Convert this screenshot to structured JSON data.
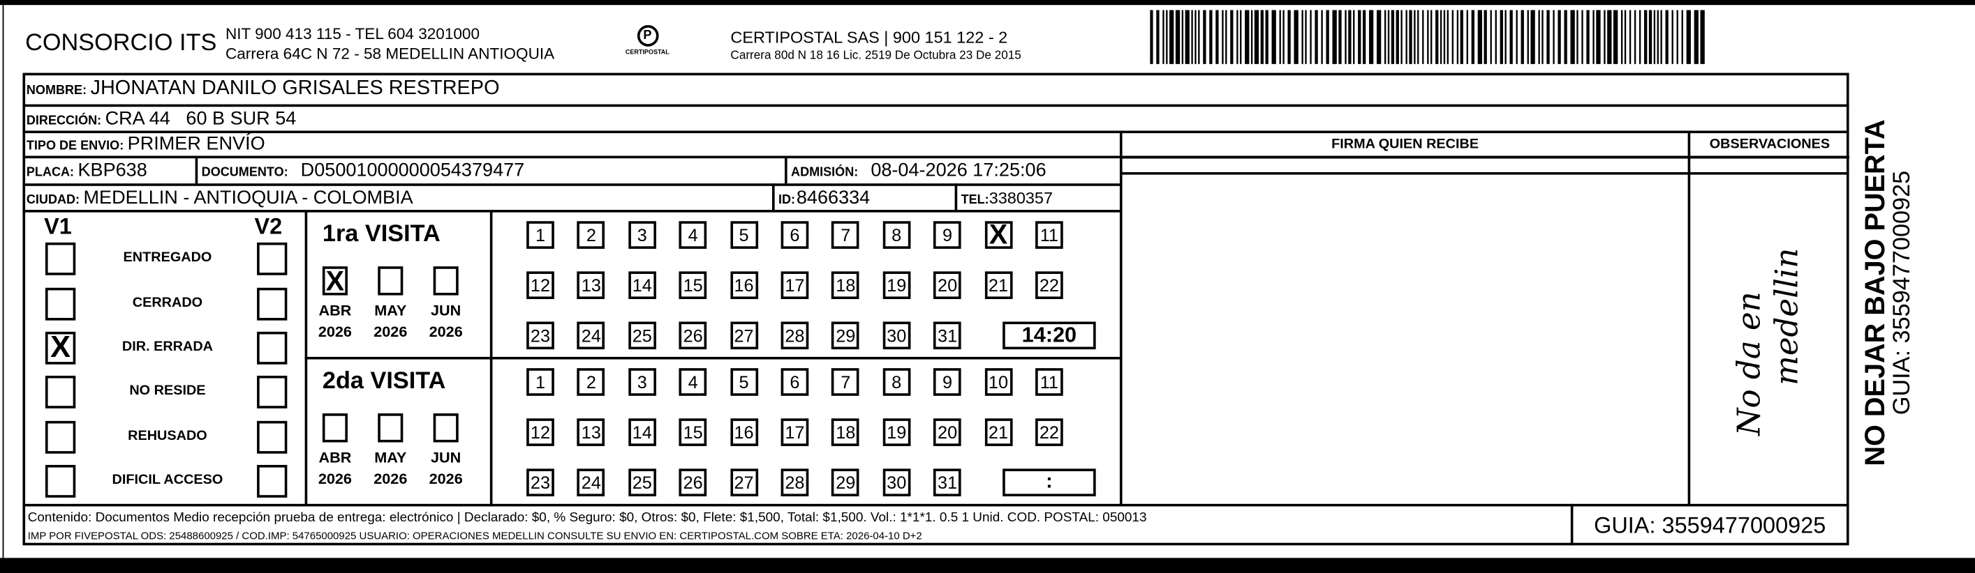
{
  "header": {
    "company": "CONSORCIO ITS",
    "company_line1": "NIT 900 413 115 - TEL 604 3201000",
    "company_line2": "Carrera 64C N 72 - 58 MEDELLIN ANTIOQUIA",
    "logo_text": "CERTIPOSTAL",
    "operator_line1": "CERTIPOSTAL SAS | 900 151 122 - 2",
    "operator_line2": "Carrera 80d N 18 16  Lic. 2519 De Octubra 23 De 2015",
    "barcode_value": "3559477000925"
  },
  "recipient": {
    "nombre_label": "NOMBRE:",
    "nombre": "JHONATAN DANILO GRISALES RESTREPO",
    "direccion_label": "DIRECCIÓN:",
    "direccion": "CRA 44   60 B SUR 54",
    "tipo_label": "TIPO DE ENVIO:",
    "tipo": "PRIMER ENVÍO",
    "placa_label": "PLACA:",
    "placa": "KBP638",
    "documento_label": "DOCUMENTO:",
    "documento": "D05001000000054379477",
    "admision_label": "ADMISIÓN:",
    "admision": "08-04-2026 17:25:06",
    "ciudad_label": "CIUDAD:",
    "ciudad": "MEDELLIN - ANTIOQUIA - COLOMBIA",
    "id_label": "ID:",
    "id": "8466334",
    "tel_label": "TEL:",
    "tel": "3380357"
  },
  "firma_header": "FIRMA QUIEN RECIBE",
  "observaciones_header": "OBSERVACIONES",
  "observaciones_handwritten": [
    "No da en",
    "medellin"
  ],
  "status": {
    "v1_label": "V1",
    "v2_label": "V2",
    "items": [
      {
        "label": "ENTREGADO",
        "v1": false,
        "v2": false
      },
      {
        "label": "CERRADO",
        "v1": false,
        "v2": false
      },
      {
        "label": "DIR. ERRADA",
        "v1": true,
        "v2": false
      },
      {
        "label": "NO RESIDE",
        "v1": false,
        "v2": false
      },
      {
        "label": "REHUSADO",
        "v1": false,
        "v2": false
      },
      {
        "label": "DIFICIL ACCESO",
        "v1": false,
        "v2": false
      }
    ]
  },
  "visits": [
    {
      "title": "1ra VISITA",
      "months": [
        {
          "m": "ABR",
          "y": "2026",
          "checked": true
        },
        {
          "m": "MAY",
          "y": "2026",
          "checked": false
        },
        {
          "m": "JUN",
          "y": "2026",
          "checked": false
        }
      ],
      "checked_day": 10,
      "time": "14:20"
    },
    {
      "title": "2da VISITA",
      "months": [
        {
          "m": "ABR",
          "y": "2026",
          "checked": false
        },
        {
          "m": "MAY",
          "y": "2026",
          "checked": false
        },
        {
          "m": "JUN",
          "y": "2026",
          "checked": false
        }
      ],
      "checked_day": null,
      "time": ":"
    }
  ],
  "days": [
    1,
    2,
    3,
    4,
    5,
    6,
    7,
    8,
    9,
    10,
    11,
    12,
    13,
    14,
    15,
    16,
    17,
    18,
    19,
    20,
    21,
    22,
    23,
    24,
    25,
    26,
    27,
    28,
    29,
    30,
    31
  ],
  "check_mark": "X",
  "footer": {
    "line1": "Contenido: Documentos Medio recepción prueba de entrega: electrónico | Declarado: $0, % Seguro: $0, Otros: $0, Flete: $1,500, Total: $1,500. Vol.: 1*1*1. 0.5  1 Unid. COD. POSTAL: 050013",
    "line2": "IMP POR FIVEPOSTAL ODS: 25488600925 / COD.IMP: 54765000925 USUARIO: OPERACIONES MEDELLIN CONSULTE SU ENVIO EN: CERTIPOSTAL.COM SOBRE ETA: 2026-04-10 D+2",
    "guia": "GUIA: 3559477000925"
  },
  "side": {
    "warning": "NO DEJAR BAJO PUERTA",
    "guia": "GUIA: 3559477000925"
  }
}
